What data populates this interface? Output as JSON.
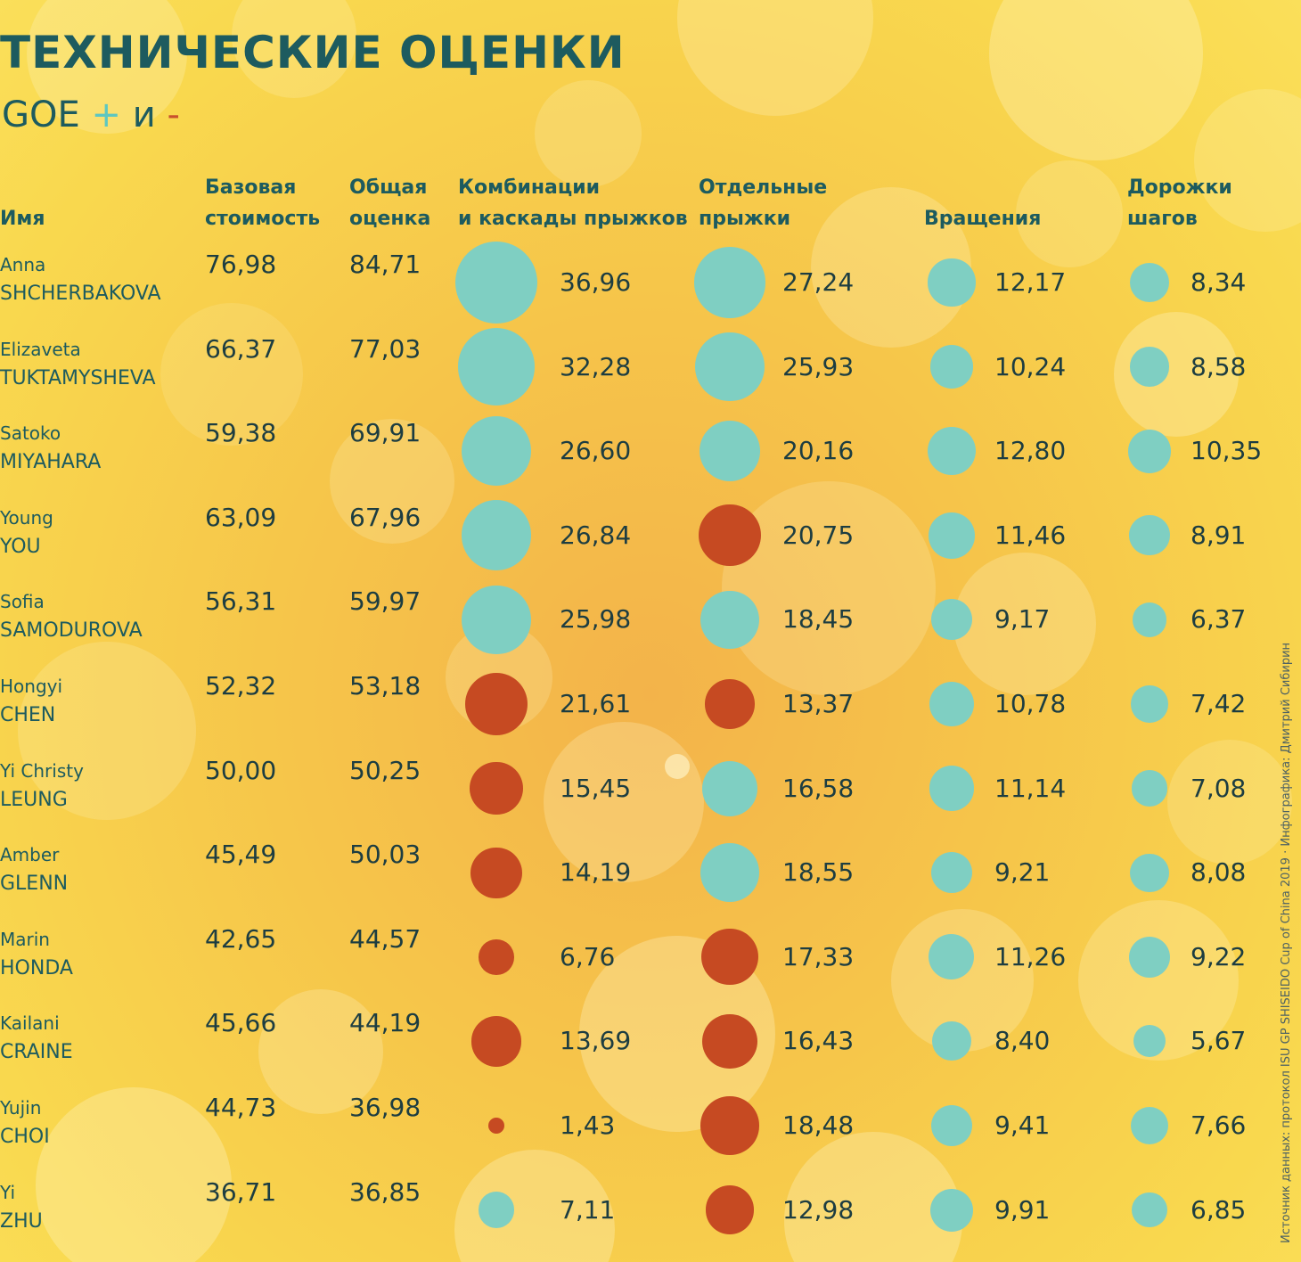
{
  "title": "ТЕХНИЧЕСКИЕ ОЦЕНКИ",
  "subtitle": {
    "goe": "GOE",
    "plus": "+",
    "and": "и",
    "minus": "-"
  },
  "headers": {
    "name": "Имя",
    "base": "Базовая\nстоимость",
    "total": "Общая\nоценка",
    "combos": "Комбинации\nи каскады прыжков",
    "jumps": "Отдельные\nпрыжки",
    "spins": "Вращения",
    "steps": "Дорожки\nшагов"
  },
  "credit": "Источник данных: протокол ISU GP SHISEIDO Cup of China 2019 · Инфографика: Дмитрий Сибирин",
  "colors": {
    "positive": "#7fcfc2",
    "negative": "#c64a22",
    "text": "#1d5b5f"
  },
  "chart_data": {
    "type": "table",
    "columns": [
      "Базовая стоимость",
      "Общая оценка",
      "Комбинации и каскады прыжков",
      "Отдельные прыжки",
      "Вращения",
      "Дорожки шагов"
    ],
    "legend": {
      "teal": "GOE +",
      "red": "GOE -"
    },
    "rows": [
      {
        "first": "Anna",
        "last": "SHCHERBAKOVA",
        "base": "76,98",
        "total": "84,71",
        "combo": {
          "value": "36,96",
          "goe": "+"
        },
        "jump": {
          "value": "27,24",
          "goe": "+"
        },
        "spin": {
          "value": "12,17",
          "goe": "+"
        },
        "step": {
          "value": "8,34",
          "goe": "+"
        }
      },
      {
        "first": "Elizaveta",
        "last": "TUKTAMYSHEVA",
        "base": "66,37",
        "total": "77,03",
        "combo": {
          "value": "32,28",
          "goe": "+"
        },
        "jump": {
          "value": "25,93",
          "goe": "+"
        },
        "spin": {
          "value": "10,24",
          "goe": "+"
        },
        "step": {
          "value": "8,58",
          "goe": "+"
        }
      },
      {
        "first": "Satoko",
        "last": "MIYAHARA",
        "base": "59,38",
        "total": "69,91",
        "combo": {
          "value": "26,60",
          "goe": "+"
        },
        "jump": {
          "value": "20,16",
          "goe": "+"
        },
        "spin": {
          "value": "12,80",
          "goe": "+"
        },
        "step": {
          "value": "10,35",
          "goe": "+"
        }
      },
      {
        "first": "Young",
        "last": "YOU",
        "base": "63,09",
        "total": "67,96",
        "combo": {
          "value": "26,84",
          "goe": "+"
        },
        "jump": {
          "value": "20,75",
          "goe": "-"
        },
        "spin": {
          "value": "11,46",
          "goe": "+"
        },
        "step": {
          "value": "8,91",
          "goe": "+"
        }
      },
      {
        "first": "Sofia",
        "last": "SAMODUROVA",
        "base": "56,31",
        "total": "59,97",
        "combo": {
          "value": "25,98",
          "goe": "+"
        },
        "jump": {
          "value": "18,45",
          "goe": "+"
        },
        "spin": {
          "value": "9,17",
          "goe": "+"
        },
        "step": {
          "value": "6,37",
          "goe": "+"
        }
      },
      {
        "first": "Hongyi",
        "last": "CHEN",
        "base": "52,32",
        "total": "53,18",
        "combo": {
          "value": "21,61",
          "goe": "-"
        },
        "jump": {
          "value": "13,37",
          "goe": "-"
        },
        "spin": {
          "value": "10,78",
          "goe": "+"
        },
        "step": {
          "value": "7,42",
          "goe": "+"
        }
      },
      {
        "first": "Yi Christy",
        "last": "LEUNG",
        "base": "50,00",
        "total": "50,25",
        "combo": {
          "value": "15,45",
          "goe": "-"
        },
        "jump": {
          "value": "16,58",
          "goe": "+"
        },
        "spin": {
          "value": "11,14",
          "goe": "+"
        },
        "step": {
          "value": "7,08",
          "goe": "+"
        }
      },
      {
        "first": "Amber",
        "last": "GLENN",
        "base": "45,49",
        "total": "50,03",
        "combo": {
          "value": "14,19",
          "goe": "-"
        },
        "jump": {
          "value": "18,55",
          "goe": "+"
        },
        "spin": {
          "value": "9,21",
          "goe": "+"
        },
        "step": {
          "value": "8,08",
          "goe": "+"
        }
      },
      {
        "first": "Marin",
        "last": "HONDA",
        "base": "42,65",
        "total": "44,57",
        "combo": {
          "value": "6,76",
          "goe": "-"
        },
        "jump": {
          "value": "17,33",
          "goe": "-"
        },
        "spin": {
          "value": "11,26",
          "goe": "+"
        },
        "step": {
          "value": "9,22",
          "goe": "+"
        }
      },
      {
        "first": "Kailani",
        "last": "CRAINE",
        "base": "45,66",
        "total": "44,19",
        "combo": {
          "value": "13,69",
          "goe": "-"
        },
        "jump": {
          "value": "16,43",
          "goe": "-"
        },
        "spin": {
          "value": "8,40",
          "goe": "+"
        },
        "step": {
          "value": "5,67",
          "goe": "+"
        }
      },
      {
        "first": "Yujin",
        "last": "CHOI",
        "base": "44,73",
        "total": "36,98",
        "combo": {
          "value": "1,43",
          "goe": "-"
        },
        "jump": {
          "value": "18,48",
          "goe": "-"
        },
        "spin": {
          "value": "9,41",
          "goe": "+"
        },
        "step": {
          "value": "7,66",
          "goe": "+"
        }
      },
      {
        "first": "Yi",
        "last": "ZHU",
        "base": "36,71",
        "total": "36,85",
        "combo": {
          "value": "7,11",
          "goe": "+"
        },
        "jump": {
          "value": "12,98",
          "goe": "-"
        },
        "spin": {
          "value": "9,91",
          "goe": "+"
        },
        "step": {
          "value": "6,85",
          "goe": "+"
        }
      }
    ]
  }
}
